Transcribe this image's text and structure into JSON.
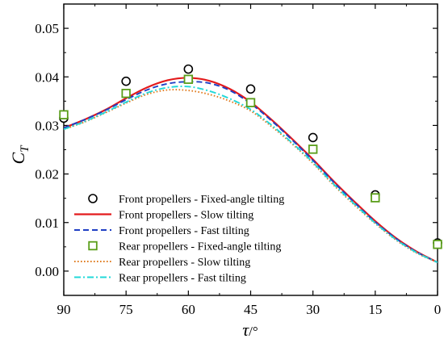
{
  "chart_data": {
    "type": "line",
    "title": "",
    "xlabel": {
      "symbol": "τ",
      "unit": "/°"
    },
    "ylabel": {
      "symbol": "C",
      "subscript": "T"
    },
    "xlim": [
      90,
      0
    ],
    "ylim": [
      -0.005,
      0.055
    ],
    "x_ticks": [
      90,
      75,
      60,
      45,
      30,
      15,
      0
    ],
    "x_tick_labels": [
      "90",
      "75",
      "60",
      "45",
      "30",
      "15",
      "0"
    ],
    "y_ticks": [
      0.0,
      0.01,
      0.02,
      0.03,
      0.04,
      0.05
    ],
    "y_tick_labels": [
      "0.00",
      "0.01",
      "0.02",
      "0.03",
      "0.04",
      "0.05"
    ],
    "grid": false,
    "legend_position": "bottom-left",
    "series": [
      {
        "name": "Front propellers - Fixed-angle tilting",
        "kind": "scatter",
        "marker": "circle",
        "color": "#000000",
        "x": [
          90,
          75,
          60,
          45,
          30,
          15,
          0
        ],
        "y": [
          0.0315,
          0.0391,
          0.0416,
          0.0375,
          0.0275,
          0.0157,
          0.0058
        ]
      },
      {
        "name": "Front propellers - Slow tilting",
        "kind": "line",
        "dash": "solid",
        "color": "#e31a1c",
        "x": [
          90,
          85,
          80,
          75,
          70,
          65,
          60,
          55,
          50,
          45,
          40,
          35,
          30,
          25,
          20,
          15,
          10,
          5,
          0
        ],
        "y": [
          0.0295,
          0.0312,
          0.0332,
          0.0356,
          0.0378,
          0.0393,
          0.0398,
          0.0392,
          0.0375,
          0.0348,
          0.0312,
          0.0272,
          0.023,
          0.0185,
          0.0143,
          0.0103,
          0.0068,
          0.004,
          0.0018
        ]
      },
      {
        "name": "Front propellers - Fast tilting",
        "kind": "line",
        "dash": "dashed",
        "color": "#1f3fc4",
        "x": [
          90,
          85,
          80,
          75,
          70,
          65,
          60,
          55,
          50,
          45,
          40,
          35,
          30,
          25,
          20,
          15,
          10,
          5,
          0
        ],
        "y": [
          0.0295,
          0.0312,
          0.0331,
          0.0353,
          0.0373,
          0.0386,
          0.039,
          0.0387,
          0.0372,
          0.0345,
          0.031,
          0.027,
          0.0228,
          0.0183,
          0.0141,
          0.0101,
          0.0067,
          0.0039,
          0.0018
        ]
      },
      {
        "name": "Rear propellers - Fixed-angle tilting",
        "kind": "scatter",
        "marker": "square",
        "color": "#5a9e1a",
        "x": [
          90,
          75,
          60,
          45,
          30,
          15,
          0
        ],
        "y": [
          0.0322,
          0.0366,
          0.0395,
          0.0347,
          0.0251,
          0.0151,
          0.0055
        ]
      },
      {
        "name": "Rear propellers - Slow tilting",
        "kind": "line",
        "dash": "dotted",
        "color": "#e07b1f",
        "x": [
          90,
          85,
          80,
          75,
          70,
          65,
          60,
          55,
          50,
          45,
          40,
          35,
          30,
          25,
          20,
          15,
          10,
          5,
          0
        ],
        "y": [
          0.0292,
          0.0307,
          0.0326,
          0.0346,
          0.0364,
          0.0373,
          0.0372,
          0.0364,
          0.035,
          0.033,
          0.0298,
          0.0262,
          0.0222,
          0.0177,
          0.0136,
          0.0098,
          0.0064,
          0.0037,
          0.0018
        ]
      },
      {
        "name": "Rear propellers - Fast tilting",
        "kind": "line",
        "dash": "dashdot",
        "color": "#22d8d8",
        "x": [
          90,
          85,
          80,
          75,
          70,
          65,
          60,
          55,
          50,
          45,
          40,
          35,
          30,
          25,
          20,
          15,
          10,
          5,
          0
        ],
        "y": [
          0.0292,
          0.0308,
          0.0327,
          0.0348,
          0.0367,
          0.0378,
          0.038,
          0.0371,
          0.0355,
          0.0333,
          0.0301,
          0.0264,
          0.0224,
          0.0179,
          0.0138,
          0.0099,
          0.0065,
          0.0038,
          0.0018
        ]
      }
    ]
  }
}
